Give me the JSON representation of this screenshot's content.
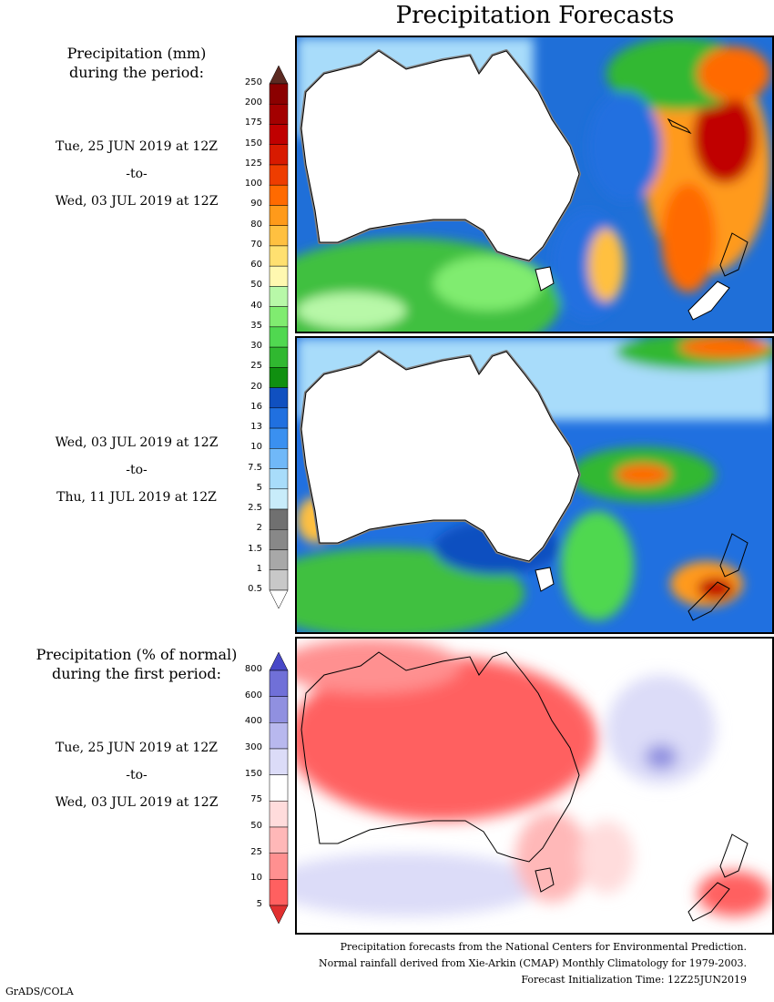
{
  "title": "Precipitation Forecasts",
  "panel1": {
    "heading_line1": "Precipitation (mm)",
    "heading_line2": "during the period:",
    "start": "Tue, 25 JUN 2019 at 12Z",
    "sep": "-to-",
    "end": "Wed, 03 JUL 2019 at 12Z"
  },
  "panel2": {
    "start": "Wed, 03 JUL 2019 at 12Z",
    "sep": "-to-",
    "end": "Thu, 11 JUL 2019 at 12Z"
  },
  "panel3": {
    "heading_line1": "Precipitation (% of normal)",
    "heading_line2": "during the first period:",
    "start": "Tue, 25 JUN 2019 at 12Z",
    "sep": "-to-",
    "end": "Wed, 03 JUL 2019 at 12Z"
  },
  "precip_scale": {
    "labels": [
      "250",
      "200",
      "175",
      "150",
      "125",
      "100",
      "90",
      "80",
      "70",
      "60",
      "50",
      "40",
      "35",
      "30",
      "25",
      "20",
      "16",
      "13",
      "10",
      "7.5",
      "5",
      "2.5",
      "2",
      "1.5",
      "1",
      "0.5"
    ],
    "colors": [
      "#5c2a22",
      "#8b0000",
      "#a30000",
      "#c00000",
      "#d81a00",
      "#ee3d00",
      "#ff6a00",
      "#ff9a1a",
      "#ffc040",
      "#ffe070",
      "#fff8b0",
      "#b8f8a8",
      "#80ec70",
      "#50d850",
      "#30b830",
      "#109010",
      "#1050c0",
      "#2070e0",
      "#3a90f0",
      "#70b8f8",
      "#a8dcfa",
      "#c8ecfa",
      "#707070",
      "#888888",
      "#a8a8a8",
      "#c8c8c8",
      "#ffffff"
    ]
  },
  "pct_scale": {
    "labels": [
      "800",
      "600",
      "400",
      "300",
      "150",
      "75",
      "50",
      "25",
      "10",
      "5"
    ],
    "colors": [
      "#4848c8",
      "#7070d8",
      "#9090e0",
      "#b8b8ee",
      "#dcdcf8",
      "#ffffff",
      "#ffdcdc",
      "#ffb8b8",
      "#ff9090",
      "#ff6060",
      "#e03030"
    ]
  },
  "footer": {
    "line1": "Precipitation forecasts from the National Centers for Environmental Prediction.",
    "line2": "Normal rainfall derived from Xie-Arkin (CMAP) Monthly Climatology for 1979-2003.",
    "line3": "Forecast Initialization Time: 12Z25JUN2019"
  },
  "credit": "GrADS/COLA"
}
